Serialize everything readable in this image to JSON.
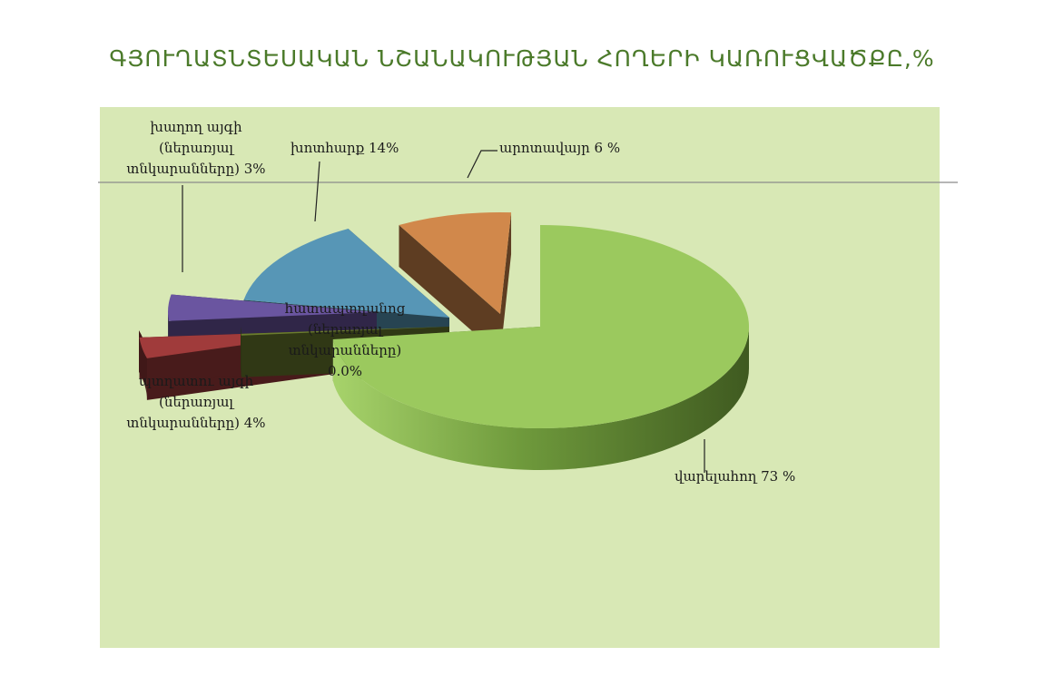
{
  "chart_data": {
    "type": "pie",
    "style": "3d-exploded",
    "title": "ԳՅՈՒՂԱՏՆՏԵՍԱԿԱՆ ՆՇԱՆԱԿՈՒԹՅԱՆ ՀՈՂԵՐԻ ԿԱՌՈՒՑՎԱԾՔԸ,%",
    "background_color": "#d8e8b5",
    "slices": [
      {
        "key": "arable",
        "value": 73,
        "color": "#9bc95e",
        "label_lines": [
          "վարելահող 73 %"
        ]
      },
      {
        "key": "pasture",
        "value": 6,
        "color": "#d1884b",
        "label_lines": [
          "արոտավայր  6 %"
        ]
      },
      {
        "key": "hayfield",
        "value": 14,
        "color": "#5796b6",
        "label_lines": [
          "խոտհարք  14%"
        ]
      },
      {
        "key": "vineyard",
        "value": 3,
        "color": "#6a55a0",
        "label_lines": [
          "խաղող այգի",
          "(ներառյալ",
          "տնկարանները)  3%"
        ]
      },
      {
        "key": "orchard",
        "value": 4,
        "color": "#a03b3b",
        "label_lines": [
          "պտղատու այգի",
          "(ներառյալ",
          "տնկարանները)  4%"
        ]
      },
      {
        "key": "berry",
        "value": 0.0,
        "color": "#6b7d2e",
        "label_lines": [
          "հատապտղանոց",
          "(ներառյալ",
          "տնկարանները)",
          "0.0%"
        ]
      }
    ]
  }
}
